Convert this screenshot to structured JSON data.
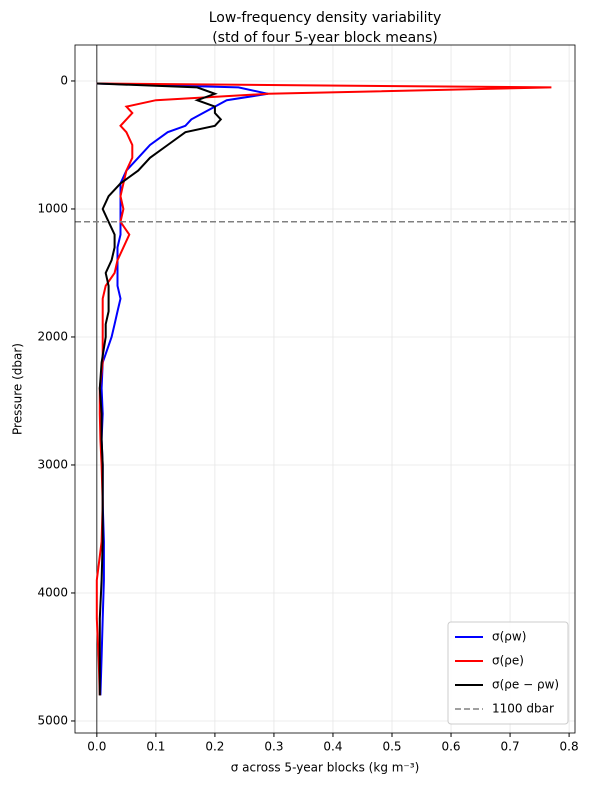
{
  "chart_data": {
    "type": "line",
    "title": "Low-frequency density variability",
    "subtitle": "(std of four 5-year block means)",
    "x_label": "σ across 5-year blocks (kg m⁻³)",
    "y_label": "Pressure (dbar)",
    "y": [
      20,
      50,
      100,
      150,
      200,
      250,
      300,
      350,
      400,
      500,
      600,
      700,
      800,
      900,
      1000,
      1100,
      1200,
      1300,
      1400,
      1500,
      1600,
      1700,
      1800,
      1900,
      2000,
      2200,
      2400,
      2600,
      2800,
      3000,
      3300,
      3600,
      3900,
      4200,
      4500,
      4800
    ],
    "series": [
      {
        "name": "σ(ρw)",
        "color": "#0000ff",
        "values": [
          0.0,
          0.24,
          0.29,
          0.22,
          0.2,
          0.18,
          0.16,
          0.15,
          0.12,
          0.09,
          0.07,
          0.05,
          0.04,
          0.04,
          0.04,
          0.04,
          0.04,
          0.035,
          0.035,
          0.035,
          0.035,
          0.04,
          0.035,
          0.03,
          0.025,
          0.01,
          0.008,
          0.01,
          0.008,
          0.01,
          0.01,
          0.012,
          0.012,
          0.01,
          0.008,
          0.006
        ]
      },
      {
        "name": "σ(ρe)",
        "color": "#ff0000",
        "values": [
          0.0,
          0.77,
          0.29,
          0.1,
          0.05,
          0.06,
          0.05,
          0.04,
          0.05,
          0.06,
          0.06,
          0.05,
          0.045,
          0.04,
          0.045,
          0.04,
          0.055,
          0.045,
          0.035,
          0.03,
          0.015,
          0.01,
          0.01,
          0.01,
          0.01,
          0.01,
          0.005,
          0.005,
          0.006,
          0.008,
          0.01,
          0.008,
          0.0,
          0.0,
          0.003,
          0.005
        ]
      },
      {
        "name": "σ(ρe − ρw)",
        "color": "#000000",
        "values": [
          0.0,
          0.17,
          0.2,
          0.17,
          0.2,
          0.2,
          0.21,
          0.2,
          0.15,
          0.12,
          0.09,
          0.07,
          0.04,
          0.02,
          0.01,
          0.02,
          0.03,
          0.03,
          0.025,
          0.015,
          0.02,
          0.02,
          0.02,
          0.015,
          0.015,
          0.008,
          0.005,
          0.008,
          0.008,
          0.01,
          0.01,
          0.01,
          0.008,
          0.005,
          0.005,
          0.005
        ]
      }
    ],
    "hline": {
      "value": 1100,
      "label": "1100 dbar",
      "color": "#808080"
    },
    "vline": 0,
    "xlim": [
      -0.037,
      0.81
    ],
    "ylim": [
      5094,
      -281
    ],
    "xticks": [
      {
        "value": 0,
        "label": "0.0"
      },
      0.1,
      0.2,
      0.3,
      0.4,
      0.5,
      0.6,
      0.7,
      0.8
    ],
    "yticks": [
      0,
      1000,
      2000,
      3000,
      4000,
      5000
    ],
    "grid": true,
    "legend": "lower right"
  }
}
